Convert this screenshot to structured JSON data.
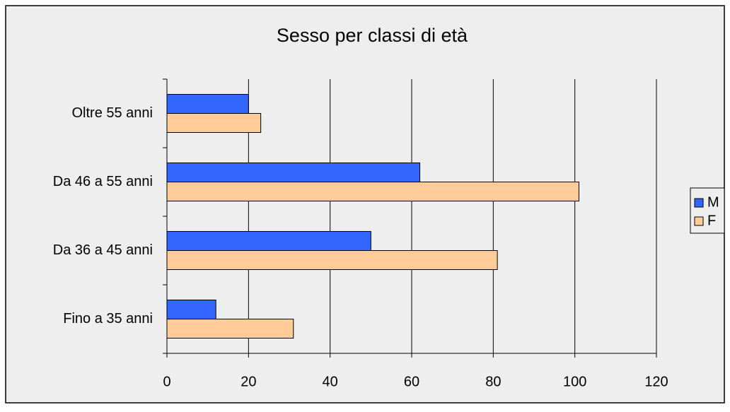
{
  "chart_data": {
    "type": "bar",
    "orientation": "horizontal",
    "title": "Sesso per classi di età",
    "categories": [
      "Fino a 35 anni",
      "Da 36 a 45 anni",
      "Da 46 a 55 anni",
      "Oltre 55 anni"
    ],
    "series": [
      {
        "name": "M",
        "color": "#3366ff",
        "values": [
          12,
          50,
          62,
          20
        ]
      },
      {
        "name": "F",
        "color": "#ffcc99",
        "values": [
          31,
          81,
          101,
          23
        ]
      }
    ],
    "xlim": [
      0,
      120
    ],
    "xticks": [
      0,
      20,
      40,
      60,
      80,
      100,
      120
    ],
    "grid": true,
    "legend": "right"
  }
}
